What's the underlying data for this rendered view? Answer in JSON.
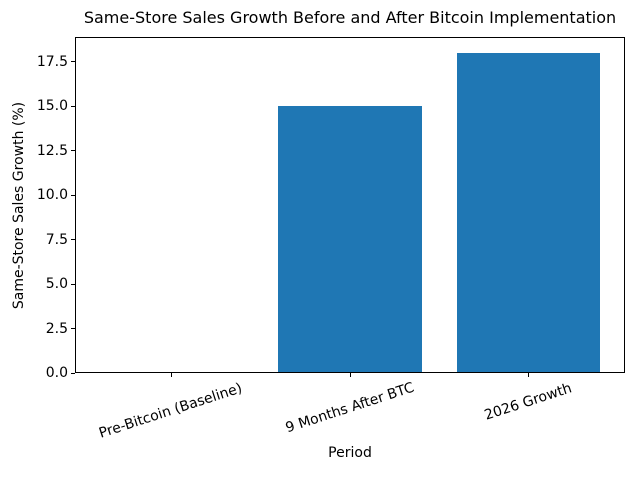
{
  "figure": {
    "background": "#ffffff",
    "text_color": "#000000",
    "axis_color": "#000000"
  },
  "chart_data": {
    "type": "bar",
    "title": "Same-Store Sales Growth Before and After Bitcoin Implementation",
    "xlabel": "Period",
    "ylabel": "Same-Store Sales Growth (%)",
    "categories": [
      "Pre-Bitcoin (Baseline)",
      "9 Months After BTC",
      "2026 Growth"
    ],
    "values": [
      0,
      15,
      18
    ],
    "bar_color": "#1f77b4",
    "bar_width_fraction": 0.8,
    "xlim": [
      -0.5375,
      2.5375
    ],
    "ylim": [
      0,
      18.9
    ],
    "yticks": [
      0.0,
      2.5,
      5.0,
      7.5,
      10.0,
      12.5,
      15.0,
      17.5
    ],
    "ytick_decimals": 1,
    "xtick_rotation_deg": 18,
    "grid": false,
    "legend": null
  }
}
